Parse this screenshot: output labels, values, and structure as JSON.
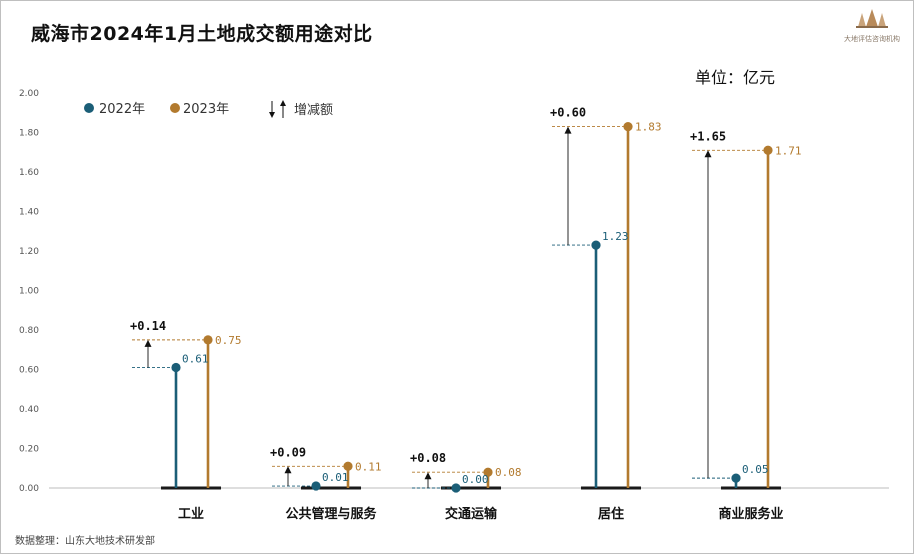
{
  "title": "威海市2024年1月土地成交额用途对比",
  "unit_label": "单位：亿元",
  "source": "数据整理：山东大地技术研发部",
  "logo_text": "大地评估咨询机构",
  "colors": {
    "y2022": "#1b5e77",
    "y2023": "#b27a2e",
    "delta": "#111111"
  },
  "legend": {
    "series_2022": "2022年",
    "series_2023": "2023年",
    "delta": "增减额"
  },
  "chart_data": {
    "type": "lollipop",
    "ylim": [
      0,
      2.0
    ],
    "yticks": [
      "0.00",
      "0.20",
      "0.40",
      "0.60",
      "0.80",
      "1.00",
      "1.20",
      "1.40",
      "1.60",
      "1.80",
      "2.00"
    ],
    "categories": [
      "工业",
      "公共管理与服务",
      "交通运输",
      "居住",
      "商业服务业"
    ],
    "series": [
      {
        "name": "2022年",
        "values": [
          0.61,
          0.01,
          0.0,
          1.23,
          0.05
        ],
        "labels": [
          "0.61",
          "0.01",
          "0.00",
          "1.23",
          "0.05"
        ]
      },
      {
        "name": "2023年",
        "values": [
          0.75,
          0.11,
          0.08,
          1.83,
          1.71
        ],
        "labels": [
          "0.75",
          "0.11",
          "0.08",
          "1.83",
          "1.71"
        ]
      }
    ],
    "delta_labels": [
      "+0.14",
      "+0.09",
      "+0.08",
      "+0.60",
      "+1.65"
    ]
  }
}
